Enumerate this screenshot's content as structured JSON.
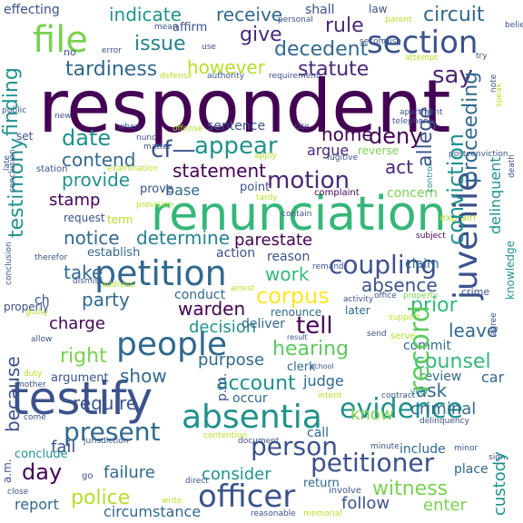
{
  "words": [
    {
      "text": "respondent",
      "color": "#440154"
    },
    {
      "text": "renunciation",
      "color": "#35b779"
    },
    {
      "text": "testify",
      "color": "#3b528b"
    },
    {
      "text": "petition",
      "color": "#31688e"
    },
    {
      "text": "people",
      "color": "#31688e"
    },
    {
      "text": "absentia",
      "color": "#21918c"
    },
    {
      "text": "officer",
      "color": "#3b528b"
    },
    {
      "text": "file",
      "color": "#7ad151"
    },
    {
      "text": "section",
      "color": "#3b528b"
    },
    {
      "text": "juvenile",
      "color": "#3b528b"
    },
    {
      "text": "coupling",
      "color": "#3b528b"
    },
    {
      "text": "evidence",
      "color": "#21918c"
    },
    {
      "text": "record",
      "color": "#5ec962"
    },
    {
      "text": "corpus",
      "color": "#fde725"
    },
    {
      "text": "appear",
      "color": "#21918c"
    },
    {
      "text": "motion",
      "color": "#482878"
    },
    {
      "text": "present",
      "color": "#31688e"
    },
    {
      "text": "person",
      "color": "#3b528b"
    },
    {
      "text": "petitioner",
      "color": "#3b528b"
    },
    {
      "text": "statement",
      "color": "#440154"
    },
    {
      "text": "tell",
      "color": "#440154"
    },
    {
      "text": "hearing",
      "color": "#5ec962"
    },
    {
      "text": "account",
      "color": "#21918c"
    },
    {
      "text": "police",
      "color": "#b5de2b"
    },
    {
      "text": "witness",
      "color": "#7ad151"
    },
    {
      "text": "counsel",
      "color": "#35b779"
    },
    {
      "text": "day",
      "color": "#440154"
    },
    {
      "text": "right",
      "color": "#7ad151"
    },
    {
      "text": "indicate",
      "color": "#21918c"
    },
    {
      "text": "receive",
      "color": "#31688e"
    },
    {
      "text": "circuit",
      "color": "#31688e"
    },
    {
      "text": "issue",
      "color": "#26828e"
    },
    {
      "text": "give",
      "color": "#482878"
    },
    {
      "text": "rule",
      "color": "#482878"
    },
    {
      "text": "decedent",
      "color": "#31688e"
    },
    {
      "text": "say",
      "color": "#482878"
    },
    {
      "text": "tardiness",
      "color": "#31688e"
    },
    {
      "text": "statute",
      "color": "#482878"
    },
    {
      "text": "however",
      "color": "#b5de2b"
    },
    {
      "text": "deny",
      "color": "#440154"
    },
    {
      "text": "home",
      "color": "#440154"
    },
    {
      "text": "allege",
      "color": "#3b528b"
    },
    {
      "text": "proceeding",
      "color": "#31688e"
    },
    {
      "text": "date",
      "color": "#21918c"
    },
    {
      "text": "finding",
      "color": "#21918c"
    },
    {
      "text": "conviction",
      "color": "#21918c"
    },
    {
      "text": "contend",
      "color": "#31688e"
    },
    {
      "text": "cf—",
      "color": "#3b528b"
    },
    {
      "text": "argue",
      "color": "#482878"
    },
    {
      "text": "provide",
      "color": "#21918c"
    },
    {
      "text": "act",
      "color": "#482878"
    },
    {
      "text": "testimony",
      "color": "#21918c"
    },
    {
      "text": "base",
      "color": "#31688e"
    },
    {
      "text": "stamp",
      "color": "#440154"
    },
    {
      "text": "notice",
      "color": "#31688e"
    },
    {
      "text": "determine",
      "color": "#26828e"
    },
    {
      "text": "parestate",
      "color": "#440154"
    },
    {
      "text": "take",
      "color": "#31688e"
    },
    {
      "text": "work",
      "color": "#35b779"
    },
    {
      "text": "absence",
      "color": "#3b528b"
    },
    {
      "text": "warden",
      "color": "#440154"
    },
    {
      "text": "party",
      "color": "#31688e"
    },
    {
      "text": "prior",
      "color": "#35b779"
    },
    {
      "text": "charge",
      "color": "#440154"
    },
    {
      "text": "decision",
      "color": "#21918c"
    },
    {
      "text": "leave",
      "color": "#31688e"
    },
    {
      "text": "purpose",
      "color": "#31688e"
    },
    {
      "text": "show",
      "color": "#31688e"
    },
    {
      "text": "ask",
      "color": "#31688e"
    },
    {
      "text": "because",
      "color": "#3b528b"
    },
    {
      "text": "require",
      "color": "#3b528b"
    },
    {
      "text": "criminal",
      "color": "#31688e"
    },
    {
      "text": "know",
      "color": "#7ad151"
    },
    {
      "text": "judge",
      "color": "#31688e"
    },
    {
      "text": "fail",
      "color": "#3b528b"
    },
    {
      "text": "failure",
      "color": "#31688e"
    },
    {
      "text": "consider",
      "color": "#21918c"
    },
    {
      "text": "follow",
      "color": "#3b528b"
    },
    {
      "text": "enter",
      "color": "#7ad151"
    },
    {
      "text": "custody",
      "color": "#21918c"
    },
    {
      "text": "delinquent",
      "color": "#21918c"
    },
    {
      "text": "knowledge",
      "color": "#21918c"
    },
    {
      "text": "claim",
      "color": "#31688e"
    },
    {
      "text": "establish",
      "color": "#31688e"
    },
    {
      "text": "concern",
      "color": "#7ad151"
    },
    {
      "text": "conduct",
      "color": "#31688e"
    },
    {
      "text": "deliver",
      "color": "#31688e"
    },
    {
      "text": "renounce",
      "color": "#31688e"
    },
    {
      "text": "later",
      "color": "#31688e"
    },
    {
      "text": "commit",
      "color": "#31688e"
    },
    {
      "text": "review",
      "color": "#31688e"
    },
    {
      "text": "car",
      "color": "#31688e"
    },
    {
      "text": "include",
      "color": "#31688e"
    },
    {
      "text": "place",
      "color": "#31688e"
    },
    {
      "text": "circumstance",
      "color": "#31688e"
    },
    {
      "text": "report",
      "color": "#31688e"
    },
    {
      "text": "call",
      "color": "#31688e"
    },
    {
      "text": "return",
      "color": "#31688e"
    },
    {
      "text": "occur",
      "color": "#31688e"
    },
    {
      "text": "clerk",
      "color": "#31688e"
    },
    {
      "text": "school",
      "color": "#3b528b"
    },
    {
      "text": "action",
      "color": "#3b528b"
    },
    {
      "text": "reason",
      "color": "#3b528b"
    },
    {
      "text": "term",
      "color": "#b5de2b"
    },
    {
      "text": "request",
      "color": "#3b528b"
    },
    {
      "text": "point",
      "color": "#3b528b"
    },
    {
      "text": "prove",
      "color": "#3b528b"
    },
    {
      "text": "sentence",
      "color": "#3b528b"
    },
    {
      "text": "affirm",
      "color": "#3b528b"
    },
    {
      "text": "effecting",
      "color": "#3b528b"
    },
    {
      "text": "shall",
      "color": "#3b528b"
    },
    {
      "text": "law",
      "color": "#3b528b"
    },
    {
      "text": "p.m.",
      "color": "#3b528b"
    },
    {
      "text": "a.m.",
      "color": "#3b528b"
    },
    {
      "text": "ch",
      "color": "#3b528b"
    },
    {
      "text": "set",
      "color": "#3b528b"
    },
    {
      "text": "complaint",
      "color": "#440154"
    },
    {
      "text": "subject",
      "color": "#440154"
    },
    {
      "text": "reverse",
      "color": "#7ad151"
    },
    {
      "text": "fugitive",
      "color": "#3b528b"
    },
    {
      "text": "apartment",
      "color": "#3b528b"
    },
    {
      "text": "telephone",
      "color": "#3b528b"
    },
    {
      "text": "control",
      "color": "#21918c"
    },
    {
      "text": "explain",
      "color": "#b5de2b"
    },
    {
      "text": "crime",
      "color": "#3b528b"
    },
    {
      "text": "property",
      "color": "#7ad151"
    },
    {
      "text": "office",
      "color": "#3b528b"
    },
    {
      "text": "support",
      "color": "#b5de2b"
    },
    {
      "text": "serve",
      "color": "#b5de2b"
    },
    {
      "text": "send",
      "color": "#3b528b"
    },
    {
      "text": "result",
      "color": "#3b528b"
    },
    {
      "text": "intent",
      "color": "#b5de2b"
    },
    {
      "text": "contract",
      "color": "#3b528b"
    },
    {
      "text": "delinquency",
      "color": "#3b528b"
    },
    {
      "text": "year",
      "color": "#21918c"
    },
    {
      "text": "minute",
      "color": "#3b528b"
    },
    {
      "text": "minor",
      "color": "#3b528b"
    },
    {
      "text": "sign",
      "color": "#3b528b"
    },
    {
      "text": "involve",
      "color": "#3b528b"
    },
    {
      "text": "direct",
      "color": "#3b528b"
    },
    {
      "text": "reasonable",
      "color": "#3b528b"
    },
    {
      "text": "memorial",
      "color": "#b5de2b"
    },
    {
      "text": "write",
      "color": "#b5de2b"
    },
    {
      "text": "go",
      "color": "#3b528b"
    },
    {
      "text": "close",
      "color": "#3b528b"
    },
    {
      "text": "conclude",
      "color": "#21918c"
    },
    {
      "text": "jurisdiction",
      "color": "#3b528b"
    },
    {
      "text": "document",
      "color": "#3b528b"
    },
    {
      "text": "contention",
      "color": "#b5de2b"
    },
    {
      "text": "come",
      "color": "#3b528b"
    },
    {
      "text": "duty",
      "color": "#b5de2b"
    },
    {
      "text": "mother",
      "color": "#3b528b"
    },
    {
      "text": "argument",
      "color": "#3b528b"
    },
    {
      "text": "allow",
      "color": "#3b528b"
    },
    {
      "text": "guilty",
      "color": "#b5de2b"
    },
    {
      "text": "properly",
      "color": "#3b528b"
    },
    {
      "text": "dismiss",
      "color": "#3b528b"
    },
    {
      "text": "address",
      "color": "#b5de2b"
    },
    {
      "text": "arrest",
      "color": "#b5de2b"
    },
    {
      "text": "therefor",
      "color": "#3b528b"
    },
    {
      "text": "conclusion",
      "color": "#3b528b"
    },
    {
      "text": "station",
      "color": "#3b528b"
    },
    {
      "text": "examination",
      "color": "#b5de2b"
    },
    {
      "text": "matter",
      "color": "#3b528b"
    },
    {
      "text": "apply",
      "color": "#b5de2b"
    },
    {
      "text": "provision",
      "color": "#b5de2b"
    },
    {
      "text": "tardy",
      "color": "#b5de2b"
    },
    {
      "text": "contain",
      "color": "#3b528b"
    },
    {
      "text": "when",
      "color": "#3b528b"
    },
    {
      "text": "offense",
      "color": "#b5de2b"
    },
    {
      "text": "cite",
      "color": "#3b528b"
    },
    {
      "text": "new",
      "color": "#3b528b"
    },
    {
      "text": "public",
      "color": "#3b528b"
    },
    {
      "text": "nunc",
      "color": "#3b528b"
    },
    {
      "text": "no",
      "color": "#3b528b"
    },
    {
      "text": "error",
      "color": "#3b528b"
    },
    {
      "text": "mean",
      "color": "#3b528b"
    },
    {
      "text": "personal",
      "color": "#3b528b"
    },
    {
      "text": "use",
      "color": "#3b528b"
    },
    {
      "text": "defense",
      "color": "#b5de2b"
    },
    {
      "text": "authority",
      "color": "#3b528b"
    },
    {
      "text": "requirement",
      "color": "#3b528b"
    },
    {
      "text": "second",
      "color": "#3b528b"
    },
    {
      "text": "raise",
      "color": "#3b528b"
    },
    {
      "text": "parent",
      "color": "#b5de2b"
    },
    {
      "text": "attempt",
      "color": "#b5de2b"
    },
    {
      "text": "try",
      "color": "#3b528b"
    },
    {
      "text": "speak",
      "color": "#b5de2b"
    },
    {
      "text": "believe",
      "color": "#3b528b"
    },
    {
      "text": "death",
      "color": "#3b528b"
    },
    {
      "text": "postconviction",
      "color": "#3b528b"
    },
    {
      "text": "agree",
      "color": "#3b528b"
    },
    {
      "text": "remand",
      "color": "#3b528b"
    },
    {
      "text": "activity",
      "color": "#3b528b"
    },
    {
      "text": "late",
      "color": "#3b528b"
    },
    {
      "text": "note",
      "color": "#3b528b"
    }
  ]
}
